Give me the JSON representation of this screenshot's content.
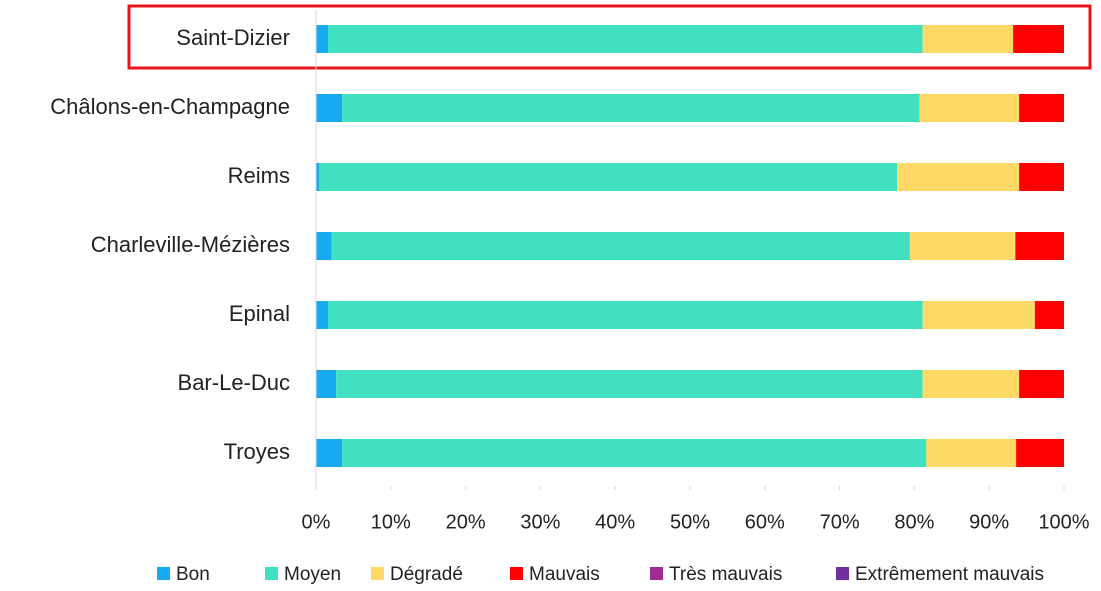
{
  "chart_data": {
    "type": "stacked-bar-horizontal",
    "categories": [
      "Saint-Dizier",
      "Châlons-en-Champagne",
      "Reims",
      "Charleville-Mézières",
      "Epinal",
      "Bar-Le-Duc",
      "Troyes"
    ],
    "series": [
      {
        "name": "Bon",
        "color": "#18a9f0",
        "values": [
          1.6,
          3.5,
          0.4,
          2.1,
          1.6,
          2.7,
          3.5
        ]
      },
      {
        "name": "Moyen",
        "color": "#40e0c0",
        "values": [
          79.5,
          77.2,
          77.3,
          77.3,
          79.5,
          78.4,
          78.1
        ]
      },
      {
        "name": "Dégradé",
        "color": "#ffd966",
        "values": [
          12.1,
          13.3,
          16.3,
          14.1,
          15.0,
          12.9,
          12.0
        ]
      },
      {
        "name": "Mauvais",
        "color": "#ff0000",
        "values": [
          6.8,
          6.0,
          6.0,
          6.5,
          3.9,
          6.0,
          6.4
        ]
      },
      {
        "name": "Très mauvais",
        "color": "#a02b93",
        "values": [
          0,
          0,
          0,
          0,
          0,
          0,
          0
        ]
      },
      {
        "name": "Extrêmement mauvais",
        "color": "#7030a0",
        "values": [
          0,
          0,
          0,
          0,
          0,
          0,
          0
        ]
      }
    ],
    "xlim": [
      0,
      100
    ],
    "xticks": [
      {
        "value": 0,
        "label": "0%"
      },
      {
        "value": 10,
        "label": "10%"
      },
      {
        "value": 20,
        "label": "20%"
      },
      {
        "value": 30,
        "label": "30%"
      },
      {
        "value": 40,
        "label": "40%"
      },
      {
        "value": 50,
        "label": "50%"
      },
      {
        "value": 60,
        "label": "60%"
      },
      {
        "value": 70,
        "label": "70%"
      },
      {
        "value": 80,
        "label": "80%"
      },
      {
        "value": 90,
        "label": "90%"
      },
      {
        "value": 100,
        "label": "100%"
      }
    ],
    "grid": false,
    "legend": "bottom"
  }
}
